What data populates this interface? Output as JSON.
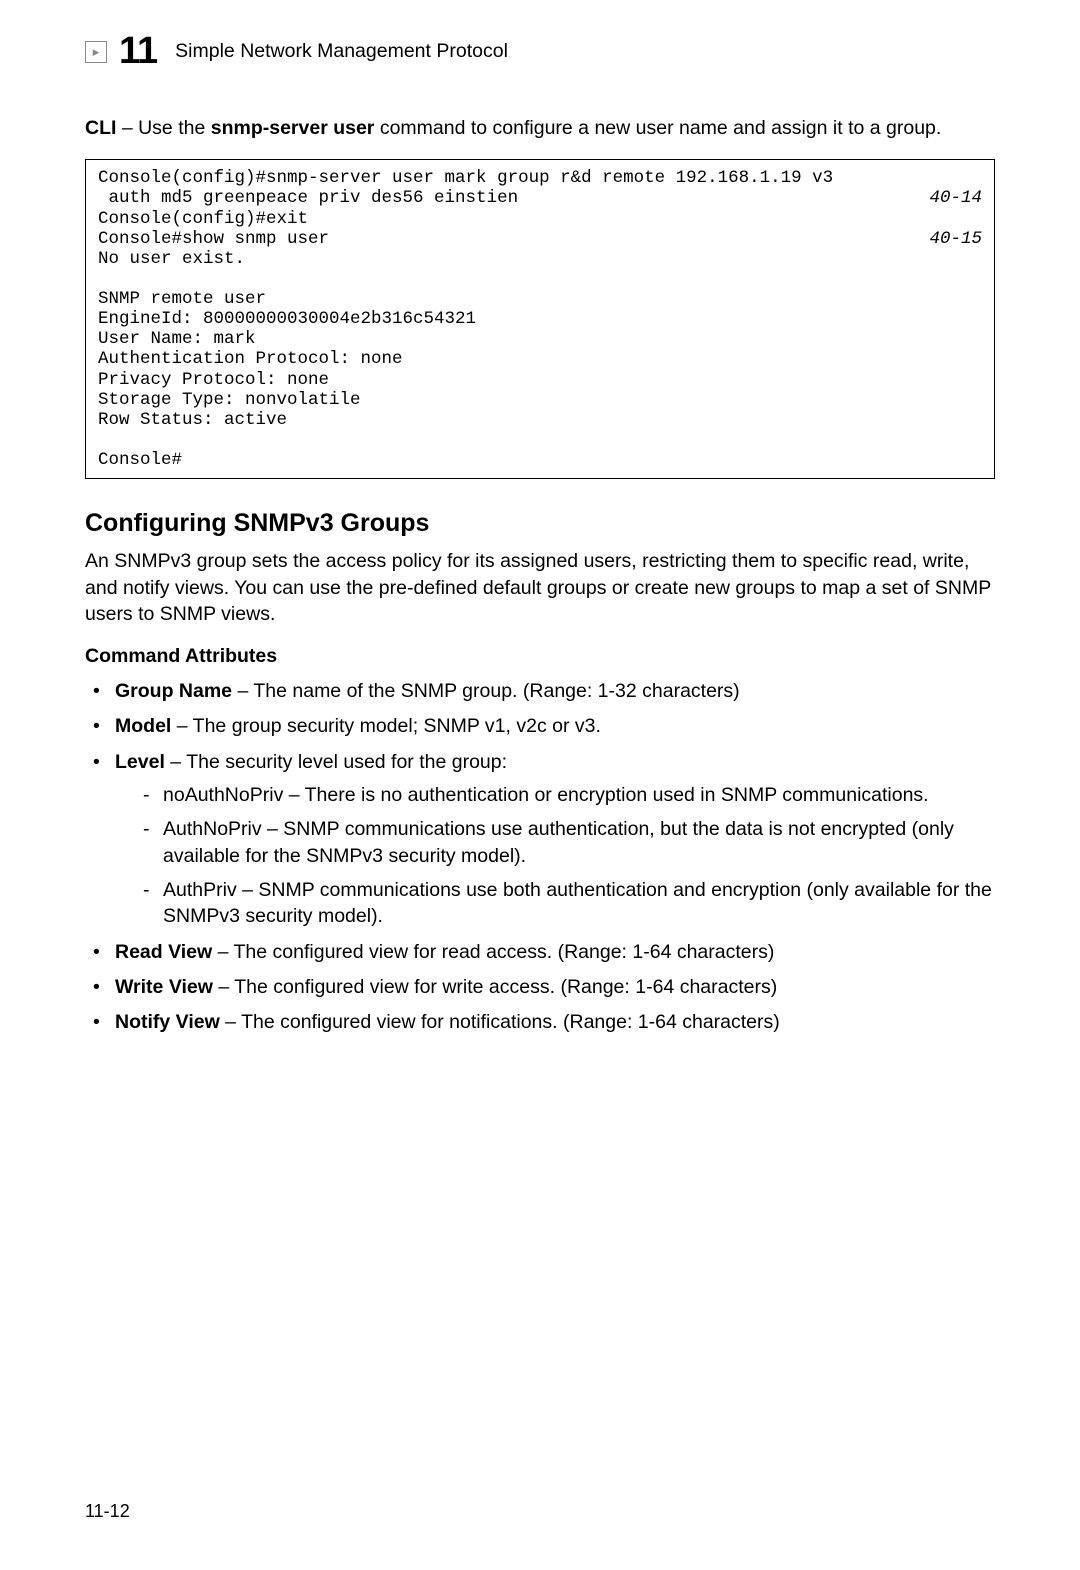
{
  "header": {
    "chapter_number": "11",
    "title": "Simple Network Management Protocol"
  },
  "intro": {
    "prefix_bold": "CLI",
    "text_before_cmd": " – Use the ",
    "command": "snmp-server user",
    "text_after_cmd": " command to configure a new user name and assign it to a group."
  },
  "code": {
    "line1": "Console(config)#snmp-server user mark group r&d remote 192.168.1.19 v3",
    "line2": " auth md5 greenpeace priv des56 einstien",
    "ref1": "40-14",
    "line3": "Console(config)#exit",
    "line4": "Console#show snmp user",
    "ref2": "40-15",
    "line5": "No user exist.",
    "line6": "",
    "line7": "SNMP remote user",
    "line8": "EngineId: 80000000030004e2b316c54321",
    "line9": "User Name: mark",
    "line10": "Authentication Protocol: none",
    "line11": "Privacy Protocol: none",
    "line12": "Storage Type: nonvolatile",
    "line13": "Row Status: active",
    "line14": "",
    "line15": "Console#"
  },
  "section": {
    "heading": "Configuring SNMPv3 Groups",
    "paragraph": "An SNMPv3 group sets the access policy for its assigned users, restricting them to specific read, write, and notify views. You can use the pre-defined default groups or create new groups to map a set of SNMP users to SNMP views."
  },
  "attributes": {
    "heading": "Command Attributes",
    "items": {
      "group_name": {
        "label": "Group Name",
        "desc": " – The name of the SNMP group. (Range: 1-32 characters)"
      },
      "model": {
        "label": "Model",
        "desc": " – The group security model; SNMP v1, v2c or v3."
      },
      "level": {
        "label": "Level",
        "desc": " – The security level used for the group:"
      },
      "level_sub": {
        "noauth": "noAuthNoPriv – There is no authentication or encryption used in SNMP communications.",
        "authno": "AuthNoPriv – SNMP communications use authentication, but the data is not encrypted (only available for the SNMPv3 security model).",
        "authpriv": "AuthPriv – SNMP communications use both authentication and encryption (only available for the SNMPv3 security model)."
      },
      "read_view": {
        "label": "Read View",
        "desc": " – The configured view for read access. (Range: 1-64 characters)"
      },
      "write_view": {
        "label": "Write View",
        "desc": " – The configured view for write access. (Range: 1-64 characters)"
      },
      "notify_view": {
        "label": "Notify View",
        "desc": " – The configured view for notifications. (Range: 1-64 characters)"
      }
    }
  },
  "page_number": "11-12"
}
